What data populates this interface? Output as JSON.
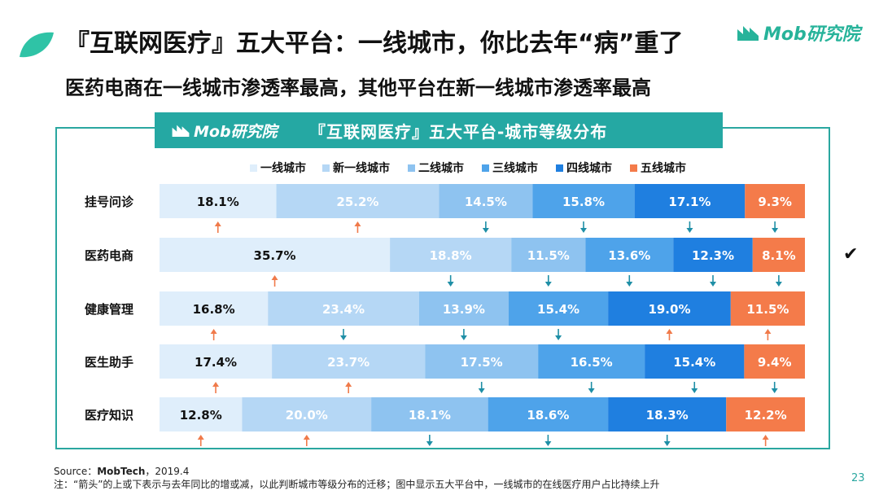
{
  "header": {
    "title": "『互联网医疗』五大平台：一线城市，你比去年“病”重了",
    "subtitle": "医药电商在一线城市渗透率最高，其他平台在新一线城市渗透率最高",
    "brand": "Mob研究院"
  },
  "panel": {
    "brand": "Mob研究院",
    "title": "『互联网医疗』五大平台-城市等级分布"
  },
  "colors": {
    "accent": "#25a8a3",
    "arrow_up": "#f07a4a",
    "arrow_down": "#1f8fa6",
    "series": [
      "#dfeefb",
      "#b5d7f5",
      "#8ec3f0",
      "#4ea3ea",
      "#1f7fe0",
      "#f47b4a"
    ]
  },
  "chart_data": {
    "type": "bar",
    "stacked": true,
    "orientation": "horizontal",
    "title": "『互联网医疗』五大平台-城市等级分布",
    "categories": [
      "挂号问诊",
      "医药电商",
      "健康管理",
      "医生助手",
      "医疗知识"
    ],
    "series": [
      {
        "name": "一线城市",
        "values": [
          18.1,
          35.7,
          16.8,
          17.4,
          12.8
        ],
        "arrows": [
          "up",
          "up",
          "up",
          "up",
          "up"
        ]
      },
      {
        "name": "新一线城市",
        "values": [
          25.2,
          18.8,
          23.4,
          23.7,
          20.0
        ],
        "arrows": [
          "up",
          "down",
          "down",
          "up",
          "up"
        ]
      },
      {
        "name": "二线城市",
        "values": [
          14.5,
          11.5,
          13.9,
          17.5,
          18.1
        ],
        "arrows": [
          "down",
          "down",
          "down",
          "down",
          "down"
        ]
      },
      {
        "name": "三线城市",
        "values": [
          15.8,
          13.6,
          15.4,
          16.5,
          18.6
        ],
        "arrows": [
          "down",
          "down",
          "down",
          "down",
          "down"
        ]
      },
      {
        "name": "四线城市",
        "values": [
          17.1,
          12.3,
          19.0,
          15.4,
          18.3
        ],
        "arrows": [
          "down",
          "down",
          "up",
          "down",
          "down"
        ]
      },
      {
        "name": "五线城市",
        "values": [
          9.3,
          8.1,
          11.5,
          9.4,
          12.2
        ],
        "arrows": [
          "down",
          "down",
          "up",
          "down",
          "up"
        ]
      }
    ],
    "data_label_suffix": "%",
    "legend": "top"
  },
  "footer": {
    "source_label": "Source：",
    "source_name": "MobTech",
    "source_date": "，2019.4",
    "note": "注：“箭头”的上或下表示与去年同比的增或减，以此判断城市等级分布的迁移；图中显示五大平台中，一线城市的在线医疗用户占比持续上升",
    "page_number": "23",
    "check_mark": "✔"
  }
}
